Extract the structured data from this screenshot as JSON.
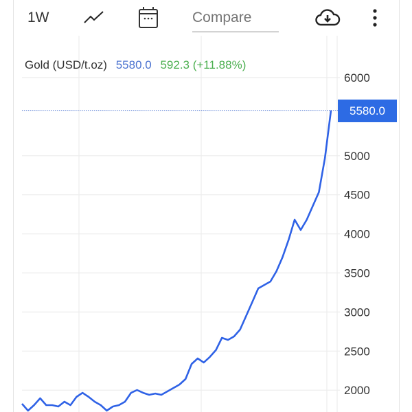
{
  "toolbar": {
    "period": "1W",
    "chart_type_icon": "line-chart-icon",
    "calendar_icon": "calendar-icon",
    "compare_placeholder": "Compare",
    "download_icon": "cloud-download-icon",
    "more_icon": "more-vertical-icon"
  },
  "legend": {
    "name": "Gold (USD/t.oz)",
    "price": "5580.0",
    "change": "592.3 (+11.88%)",
    "price_color": "#4a72d0",
    "change_color": "#4caf50"
  },
  "price_label": "5580.0",
  "chart_data": {
    "type": "line",
    "title": "Gold (USD/t.oz)",
    "xlabel": "",
    "ylabel": "",
    "ylim": [
      1700,
      6100
    ],
    "yticks": [
      "2000",
      "2500",
      "3000",
      "3500",
      "4000",
      "4500",
      "5000",
      "6000"
    ],
    "grid": true,
    "line_color": "#2f62e6",
    "last_value": 5580.0,
    "values": [
      1826,
      1738,
      1808,
      1896,
      1808,
      1808,
      1791,
      1852,
      1808,
      1914,
      1966,
      1914,
      1852,
      1808,
      1738,
      1791,
      1808,
      1852,
      1966,
      2002,
      1966,
      1940,
      1957,
      1940,
      1984,
      2028,
      2072,
      2142,
      2336,
      2406,
      2354,
      2424,
      2512,
      2670,
      2643,
      2687,
      2775,
      2951,
      3126,
      3302,
      3346,
      3390,
      3522,
      3700,
      3921,
      4181,
      4050,
      4181,
      4357,
      4533,
      4970,
      5580
    ]
  }
}
